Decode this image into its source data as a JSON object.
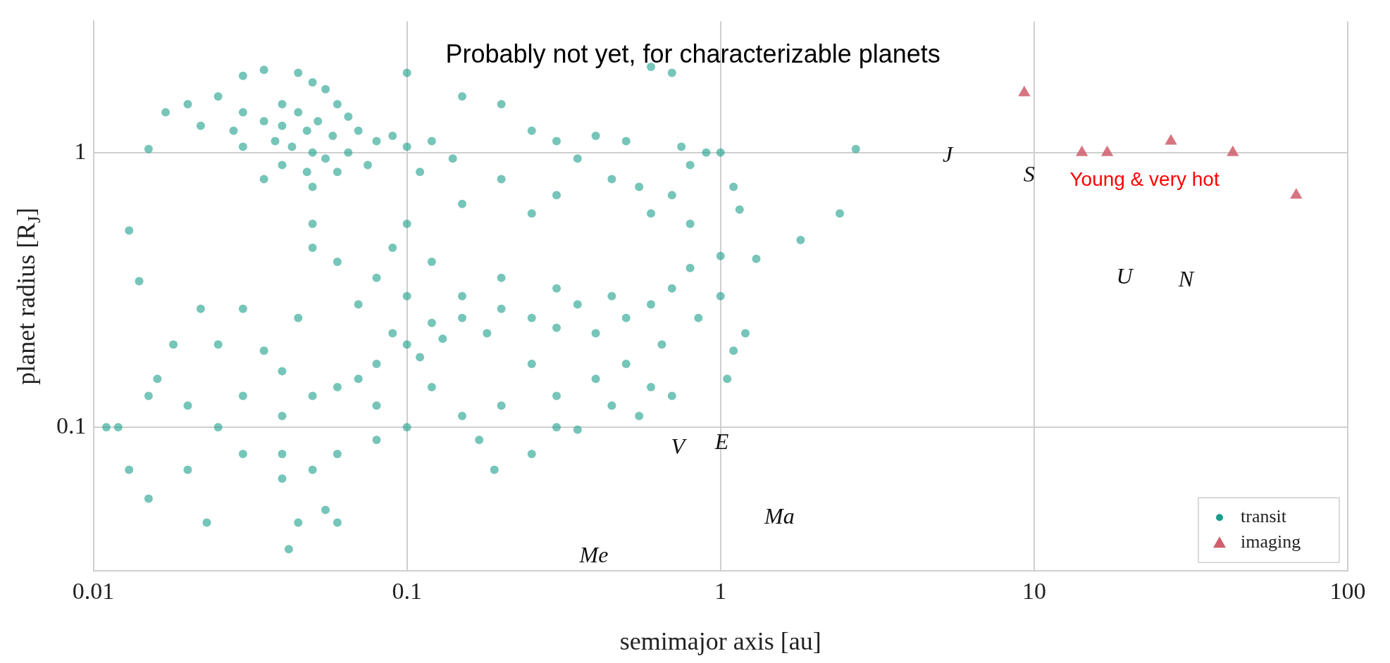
{
  "chart_data": {
    "type": "scatter",
    "xlabel": "semimajor axis [au]",
    "ylabel": "planet radius [R$_{J}$]",
    "log": "xy",
    "xlim": [
      0.01,
      100
    ],
    "ylim": [
      0.03,
      3
    ],
    "xticks": [
      0.01,
      0.1,
      1,
      10,
      100
    ],
    "yticks": [
      0.1,
      1
    ],
    "grid": true,
    "legend": "bottom right",
    "annotations": [
      "Probably not yet, for characterizable planets",
      "Young & very hot",
      "J",
      "S",
      "U",
      "N",
      "V",
      "E",
      "Ma",
      "Me"
    ],
    "series": [
      {
        "name": "transit",
        "color": "#1a9e8a",
        "marker": "circle",
        "x": [
          0.03,
          0.035,
          0.045,
          0.05,
          0.055,
          0.025,
          0.02,
          0.03,
          0.04,
          0.045,
          0.06,
          0.065,
          0.022,
          0.028,
          0.035,
          0.04,
          0.048,
          0.052,
          0.058,
          0.07,
          0.08,
          0.09,
          0.1,
          0.03,
          0.038,
          0.043,
          0.05,
          0.055,
          0.065,
          0.04,
          0.048,
          0.06,
          0.075,
          0.015,
          0.017,
          0.12,
          0.14,
          0.11,
          0.05,
          0.035,
          0.1,
          0.6,
          0.7,
          0.15,
          0.2,
          0.3,
          0.4,
          0.5,
          0.25,
          0.35,
          0.45,
          0.55,
          0.7,
          0.75,
          0.9,
          1.0,
          0.8,
          2.7,
          2.4,
          1.8,
          1.3,
          1.1,
          1.15,
          0.3,
          0.2,
          0.15,
          0.25,
          0.6,
          0.8,
          1.2,
          1.05,
          1.1,
          0.1,
          0.09,
          0.11,
          0.12,
          0.08,
          0.07,
          0.06,
          0.05,
          0.13,
          0.15,
          0.18,
          0.2,
          0.25,
          0.3,
          0.35,
          0.4,
          0.5,
          0.6,
          0.15,
          0.1,
          0.08,
          0.06,
          0.05,
          0.12,
          0.2,
          0.3,
          0.45,
          0.7,
          0.65,
          0.5,
          0.4,
          0.3,
          0.2,
          0.15,
          0.1,
          0.08,
          0.06,
          0.05,
          0.04,
          0.03,
          0.025,
          0.02,
          0.015,
          0.012,
          0.013,
          0.011,
          0.015,
          0.02,
          0.03,
          0.04,
          0.04,
          0.035,
          0.03,
          0.025,
          0.045,
          0.07,
          0.09,
          0.1,
          0.05,
          0.04,
          0.055,
          0.045,
          0.06,
          0.042,
          0.023,
          0.013,
          0.014,
          0.016,
          0.018,
          0.022,
          0.17,
          0.25,
          0.3,
          0.19,
          0.35,
          0.45,
          0.6,
          0.7,
          0.55,
          0.85,
          1.0,
          1.0,
          0.8,
          0.25,
          0.12,
          0.08
        ],
        "values": [
          1.9,
          2.0,
          1.95,
          1.8,
          1.7,
          1.6,
          1.5,
          1.4,
          1.5,
          1.4,
          1.5,
          1.35,
          1.25,
          1.2,
          1.3,
          1.25,
          1.2,
          1.3,
          1.15,
          1.2,
          1.1,
          1.15,
          1.05,
          1.05,
          1.1,
          1.05,
          1.0,
          0.95,
          1.0,
          0.9,
          0.85,
          0.85,
          0.9,
          1.03,
          1.4,
          1.1,
          0.95,
          0.85,
          0.75,
          0.8,
          1.95,
          2.05,
          1.95,
          1.6,
          1.5,
          1.1,
          1.15,
          1.1,
          1.2,
          0.95,
          0.8,
          0.75,
          0.7,
          1.05,
          1.0,
          1.0,
          0.9,
          1.03,
          0.6,
          0.48,
          0.41,
          0.75,
          0.62,
          0.7,
          0.8,
          0.65,
          0.6,
          0.6,
          0.55,
          0.22,
          0.15,
          0.19,
          0.2,
          0.22,
          0.18,
          0.24,
          0.17,
          0.15,
          0.14,
          0.13,
          0.21,
          0.25,
          0.22,
          0.27,
          0.25,
          0.23,
          0.28,
          0.22,
          0.25,
          0.28,
          0.3,
          0.3,
          0.35,
          0.4,
          0.45,
          0.4,
          0.35,
          0.32,
          0.3,
          0.32,
          0.2,
          0.17,
          0.15,
          0.13,
          0.12,
          0.11,
          0.1,
          0.09,
          0.08,
          0.07,
          0.065,
          0.08,
          0.1,
          0.12,
          0.13,
          0.1,
          0.07,
          0.1,
          0.055,
          0.07,
          0.13,
          0.11,
          0.16,
          0.19,
          0.27,
          0.2,
          0.25,
          0.28,
          0.45,
          0.55,
          0.55,
          0.08,
          0.05,
          0.045,
          0.045,
          0.036,
          0.045,
          0.52,
          0.34,
          0.15,
          0.2,
          0.27,
          0.09,
          0.08,
          0.1,
          0.07,
          0.098,
          0.12,
          0.14,
          0.13,
          0.11,
          0.25,
          0.3,
          0.42,
          0.38,
          0.17,
          0.14,
          0.12
        ]
      },
      {
        "name": "imaging",
        "color": "#d0606e",
        "marker": "triangle",
        "x": [
          9.3,
          14.2,
          17.1,
          27.3,
          43,
          68.5
        ],
        "values": [
          1.65,
          1.0,
          1.0,
          1.1,
          1.0,
          0.7
        ]
      }
    ]
  }
}
